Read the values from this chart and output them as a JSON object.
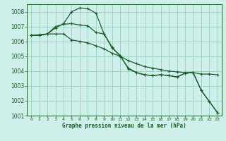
{
  "title": "Graphe pression niveau de la mer (hPa)",
  "bg_color": "#cff0ea",
  "grid_color": "#a0d4c8",
  "line_color": "#1a5c2a",
  "ylim": [
    1001,
    1008.5
  ],
  "yticks": [
    1001,
    1002,
    1003,
    1004,
    1005,
    1006,
    1007,
    1008
  ],
  "xlim": [
    -0.5,
    23.5
  ],
  "xticks": [
    0,
    1,
    2,
    3,
    4,
    5,
    6,
    7,
    8,
    9,
    10,
    11,
    12,
    13,
    14,
    15,
    16,
    17,
    18,
    19,
    20,
    21,
    22,
    23
  ],
  "series1_x": [
    0,
    1,
    2,
    3,
    4,
    5,
    6,
    7,
    8,
    9,
    10,
    11,
    12,
    13,
    14,
    15,
    16,
    17,
    18,
    19,
    20,
    21,
    22,
    23
  ],
  "series1": [
    1006.4,
    1006.45,
    1006.5,
    1006.5,
    1006.5,
    1006.1,
    1006.0,
    1005.9,
    1005.7,
    1005.5,
    1005.2,
    1005.0,
    1004.7,
    1004.5,
    1004.3,
    1004.2,
    1004.1,
    1004.0,
    1003.95,
    1003.9,
    1003.9,
    1003.8,
    1003.8,
    1003.75
  ],
  "series2_x": [
    0,
    1,
    2,
    3,
    4,
    5,
    6,
    7,
    8,
    9,
    10,
    11,
    12,
    13,
    14,
    15,
    16,
    17,
    18,
    19,
    20,
    21,
    22,
    23
  ],
  "series2": [
    1006.4,
    1006.4,
    1006.5,
    1006.9,
    1007.2,
    1008.0,
    1008.25,
    1008.2,
    1007.9,
    1006.5,
    1005.55,
    1005.05,
    1004.15,
    1003.9,
    1003.75,
    1003.7,
    1003.75,
    1003.7,
    1003.6,
    1003.85,
    1003.9,
    1002.7,
    1001.95,
    1001.2
  ],
  "series3_x": [
    0,
    1,
    2,
    3,
    4,
    5,
    6,
    7,
    8,
    9,
    10,
    11,
    12,
    13,
    14,
    15,
    16,
    17,
    18,
    19,
    20,
    21,
    22,
    23
  ],
  "series3": [
    1006.4,
    1006.4,
    1006.5,
    1007.0,
    1007.15,
    1007.2,
    1007.1,
    1007.05,
    1006.6,
    1006.5,
    1005.6,
    1005.0,
    1004.2,
    1003.9,
    1003.75,
    1003.7,
    1003.75,
    1003.7,
    1003.6,
    1003.85,
    1003.9,
    1002.7,
    1001.95,
    1001.2
  ]
}
